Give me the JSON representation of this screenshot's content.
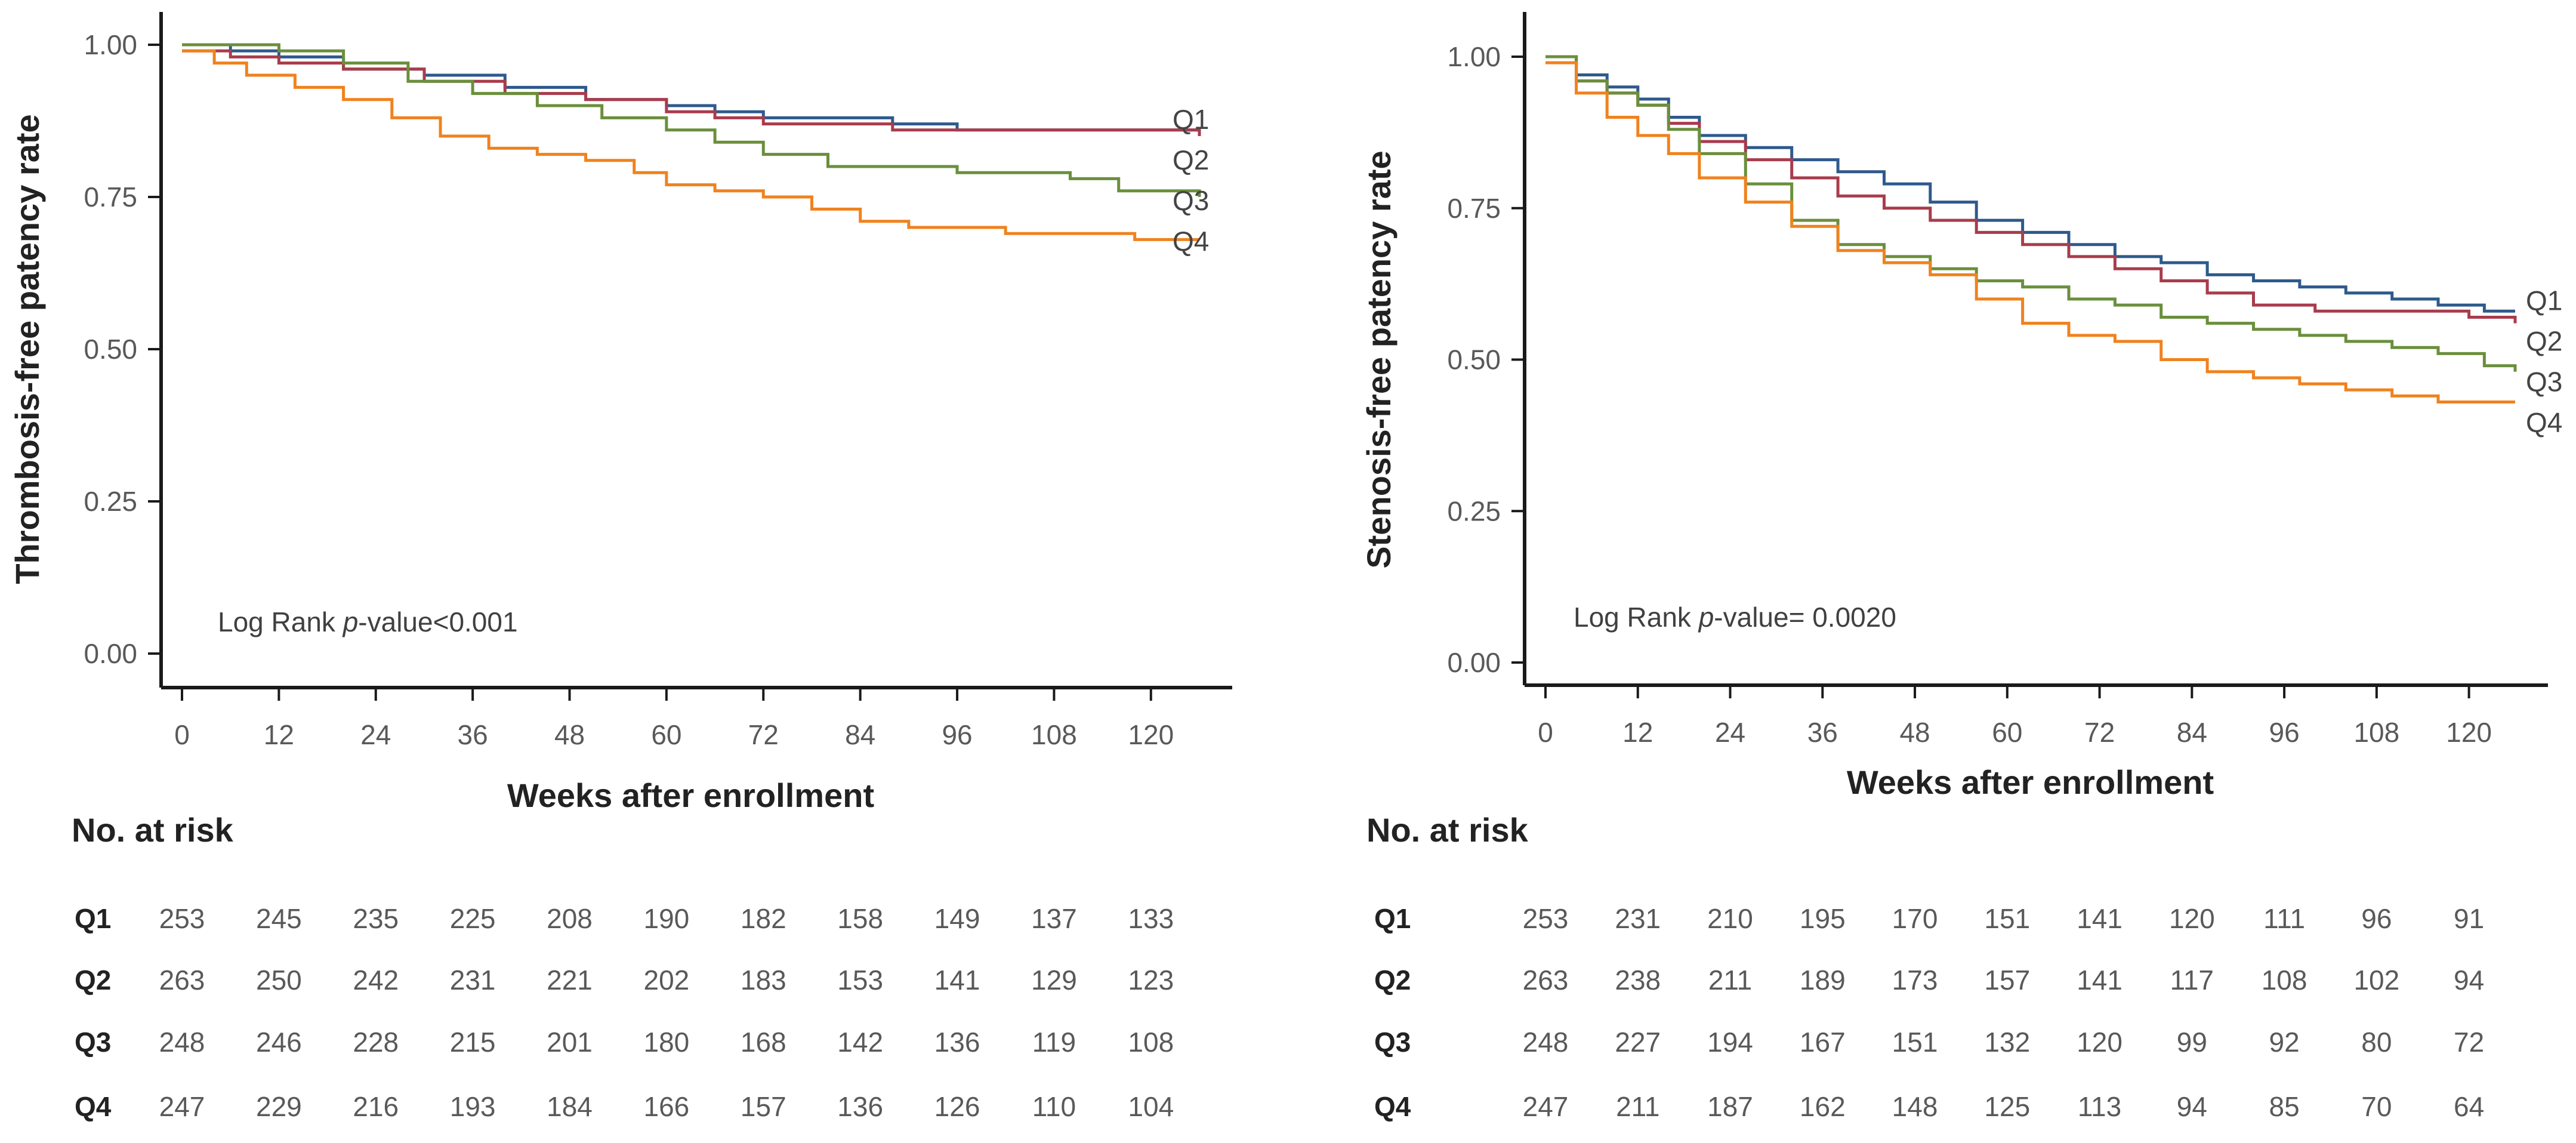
{
  "chart_data": [
    {
      "type": "line",
      "subtype": "kaplan-meier-step",
      "title": "",
      "xlabel": "Weeks after enrollment",
      "ylabel": "Thrombosis-free patency rate",
      "xlim": [
        0,
        126
      ],
      "ylim": [
        0,
        1
      ],
      "xticks": [
        "0",
        "12",
        "24",
        "36",
        "48",
        "60",
        "72",
        "84",
        "96",
        "108",
        "120"
      ],
      "yticks": [
        "0.00",
        "0.25",
        "0.50",
        "0.75",
        "1.00"
      ],
      "annotation": {
        "prefix": "Log Rank ",
        "italic": "p",
        "suffix": "-value<0.001"
      },
      "legend_placement": "right-end of curves",
      "series": [
        {
          "name": "Q1",
          "color": "#2e5a8c",
          "x": [
            0,
            6,
            12,
            20,
            30,
            40,
            50,
            60,
            66,
            72,
            80,
            88,
            96,
            110,
            126
          ],
          "y": [
            1.0,
            0.99,
            0.98,
            0.96,
            0.95,
            0.93,
            0.91,
            0.9,
            0.89,
            0.88,
            0.88,
            0.87,
            0.86,
            0.86,
            0.86
          ]
        },
        {
          "name": "Q2",
          "color": "#a83c4c",
          "x": [
            0,
            6,
            12,
            20,
            30,
            40,
            50,
            60,
            66,
            72,
            80,
            88,
            96,
            110,
            126
          ],
          "y": [
            0.99,
            0.98,
            0.97,
            0.96,
            0.94,
            0.92,
            0.91,
            0.89,
            0.88,
            0.87,
            0.87,
            0.86,
            0.86,
            0.86,
            0.85
          ]
        },
        {
          "name": "Q3",
          "color": "#6a8f3c",
          "x": [
            0,
            6,
            12,
            20,
            28,
            36,
            44,
            52,
            60,
            66,
            72,
            80,
            88,
            96,
            104,
            110,
            116,
            126
          ],
          "y": [
            1.0,
            1.0,
            0.99,
            0.97,
            0.94,
            0.92,
            0.9,
            0.88,
            0.86,
            0.84,
            0.82,
            0.8,
            0.8,
            0.79,
            0.79,
            0.78,
            0.76,
            0.75
          ]
        },
        {
          "name": "Q4",
          "color": "#f0821e",
          "x": [
            0,
            4,
            8,
            14,
            20,
            26,
            32,
            38,
            44,
            50,
            56,
            60,
            66,
            72,
            78,
            84,
            90,
            96,
            102,
            110,
            118,
            126
          ],
          "y": [
            0.99,
            0.97,
            0.95,
            0.93,
            0.91,
            0.88,
            0.85,
            0.83,
            0.82,
            0.81,
            0.79,
            0.77,
            0.76,
            0.75,
            0.73,
            0.71,
            0.7,
            0.7,
            0.69,
            0.69,
            0.68,
            0.68
          ]
        }
      ],
      "risk_table": {
        "title": "No. at risk",
        "rows": [
          {
            "label": "Q1",
            "values": [
              "253",
              "245",
              "235",
              "225",
              "208",
              "190",
              "182",
              "158",
              "149",
              "137",
              "133"
            ]
          },
          {
            "label": "Q2",
            "values": [
              "263",
              "250",
              "242",
              "231",
              "221",
              "202",
              "183",
              "153",
              "141",
              "129",
              "123"
            ]
          },
          {
            "label": "Q3",
            "values": [
              "248",
              "246",
              "228",
              "215",
              "201",
              "180",
              "168",
              "142",
              "136",
              "119",
              "108"
            ]
          },
          {
            "label": "Q4",
            "values": [
              "247",
              "229",
              "216",
              "193",
              "184",
              "166",
              "157",
              "136",
              "126",
              "110",
              "104"
            ]
          }
        ]
      }
    },
    {
      "type": "line",
      "subtype": "kaplan-meier-step",
      "title": "",
      "xlabel": "Weeks after enrollment",
      "ylabel": "Stenosis-free patency rate",
      "xlim": [
        0,
        126
      ],
      "ylim": [
        0,
        1
      ],
      "xticks": [
        "0",
        "12",
        "24",
        "36",
        "48",
        "60",
        "72",
        "84",
        "96",
        "108",
        "120"
      ],
      "yticks": [
        "0.00",
        "0.25",
        "0.50",
        "0.75",
        "1.00"
      ],
      "annotation": {
        "prefix": "Log Rank ",
        "italic": "p",
        "suffix": "-value=  0.0020"
      },
      "legend_placement": "right-end of curves",
      "series": [
        {
          "name": "Q1",
          "color": "#2e5a8c",
          "x": [
            0,
            4,
            8,
            12,
            16,
            20,
            26,
            32,
            38,
            44,
            50,
            56,
            62,
            68,
            74,
            80,
            86,
            92,
            98,
            104,
            110,
            116,
            122,
            126
          ],
          "y": [
            1.0,
            0.97,
            0.95,
            0.93,
            0.9,
            0.87,
            0.85,
            0.83,
            0.81,
            0.79,
            0.76,
            0.73,
            0.71,
            0.69,
            0.67,
            0.66,
            0.64,
            0.63,
            0.62,
            0.61,
            0.6,
            0.59,
            0.58,
            0.58
          ]
        },
        {
          "name": "Q2",
          "color": "#a83c4c",
          "x": [
            0,
            4,
            8,
            12,
            16,
            20,
            26,
            32,
            38,
            44,
            50,
            56,
            62,
            68,
            74,
            80,
            86,
            92,
            100,
            110,
            120,
            126
          ],
          "y": [
            1.0,
            0.96,
            0.94,
            0.92,
            0.89,
            0.86,
            0.83,
            0.8,
            0.77,
            0.75,
            0.73,
            0.71,
            0.69,
            0.67,
            0.65,
            0.63,
            0.61,
            0.59,
            0.58,
            0.58,
            0.57,
            0.56
          ]
        },
        {
          "name": "Q3",
          "color": "#6a8f3c",
          "x": [
            0,
            4,
            8,
            12,
            16,
            20,
            26,
            32,
            38,
            44,
            50,
            56,
            62,
            68,
            74,
            80,
            86,
            92,
            98,
            104,
            110,
            116,
            122,
            126
          ],
          "y": [
            1.0,
            0.96,
            0.94,
            0.92,
            0.88,
            0.84,
            0.79,
            0.73,
            0.69,
            0.67,
            0.65,
            0.63,
            0.62,
            0.6,
            0.59,
            0.57,
            0.56,
            0.55,
            0.54,
            0.53,
            0.52,
            0.51,
            0.49,
            0.48
          ]
        },
        {
          "name": "Q4",
          "color": "#f0821e",
          "x": [
            0,
            4,
            8,
            12,
            16,
            20,
            26,
            32,
            38,
            44,
            50,
            56,
            62,
            68,
            74,
            80,
            86,
            92,
            98,
            104,
            110,
            116,
            126
          ],
          "y": [
            0.99,
            0.94,
            0.9,
            0.87,
            0.84,
            0.8,
            0.76,
            0.72,
            0.68,
            0.66,
            0.64,
            0.6,
            0.56,
            0.54,
            0.53,
            0.5,
            0.48,
            0.47,
            0.46,
            0.45,
            0.44,
            0.43,
            0.43
          ]
        }
      ],
      "risk_table": {
        "title": "No. at risk",
        "rows": [
          {
            "label": "Q1",
            "values": [
              "253",
              "231",
              "210",
              "195",
              "170",
              "151",
              "141",
              "120",
              "111",
              "96",
              "91"
            ]
          },
          {
            "label": "Q2",
            "values": [
              "263",
              "238",
              "211",
              "189",
              "173",
              "157",
              "141",
              "117",
              "108",
              "102",
              "94"
            ]
          },
          {
            "label": "Q3",
            "values": [
              "248",
              "227",
              "194",
              "167",
              "151",
              "132",
              "120",
              "99",
              "92",
              "80",
              "72"
            ]
          },
          {
            "label": "Q4",
            "values": [
              "247",
              "211",
              "187",
              "162",
              "148",
              "125",
              "113",
              "94",
              "85",
              "70",
              "64"
            ]
          }
        ]
      }
    }
  ]
}
